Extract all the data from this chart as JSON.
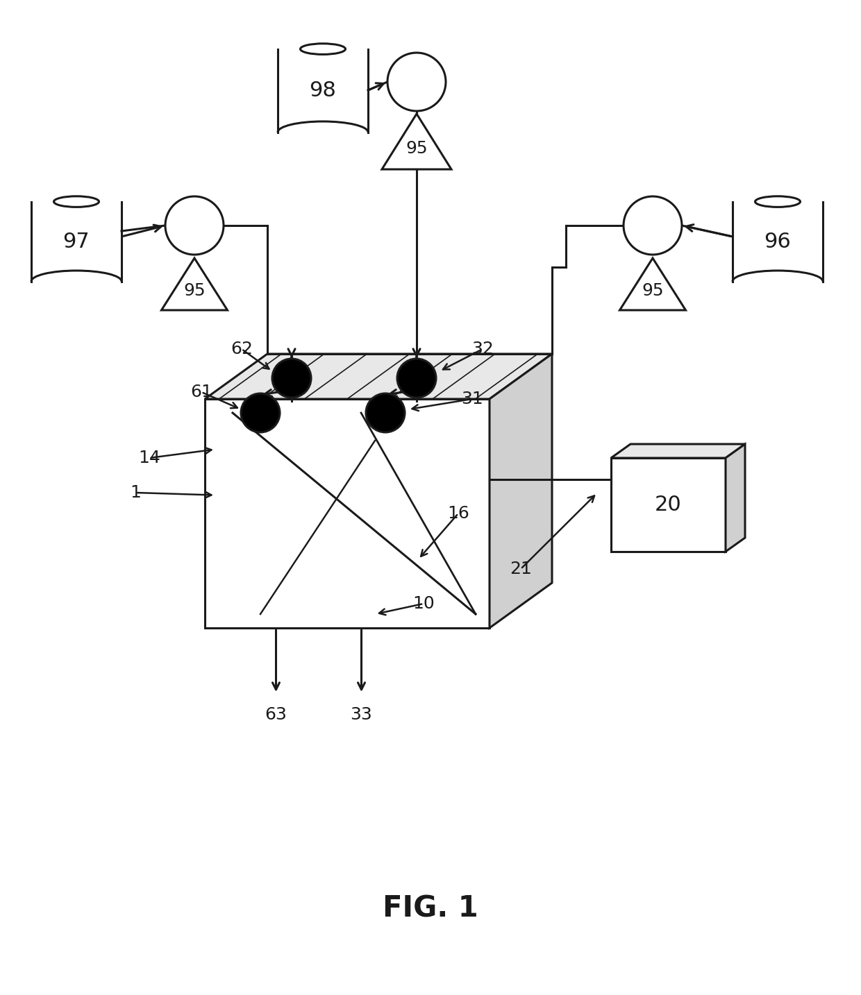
{
  "bg_color": "#ffffff",
  "line_color": "#1a1a1a",
  "fill_color": "#000000",
  "lw": 2.2,
  "fig_label": "FIG. 1"
}
